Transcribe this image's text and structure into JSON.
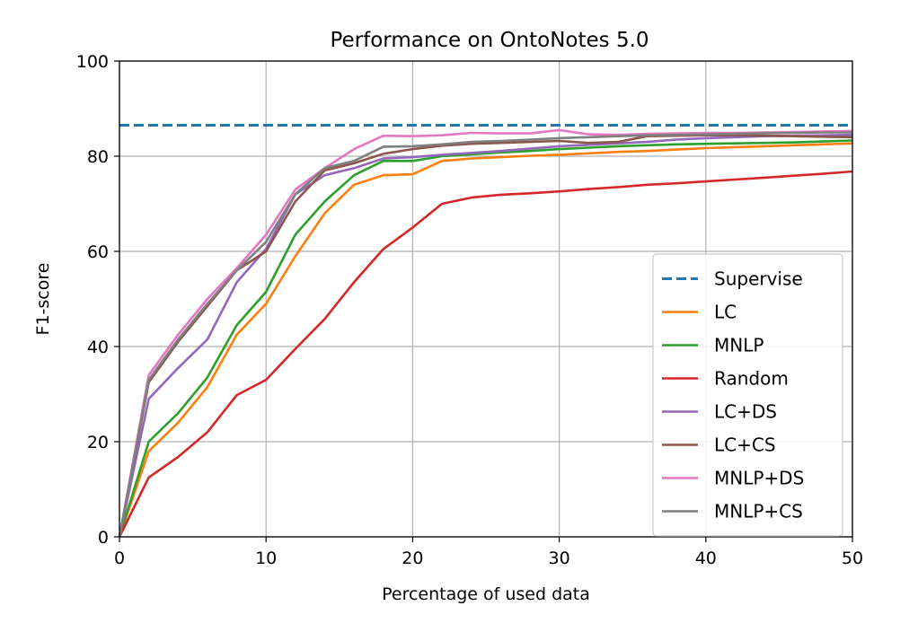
{
  "chart_data": {
    "type": "line",
    "title": "Performance on OntoNotes 5.0",
    "xlabel": "Percentage of used data",
    "ylabel": "F1-score",
    "xlim": [
      0,
      50
    ],
    "ylim": [
      0,
      100
    ],
    "xticks": [
      0,
      10,
      20,
      30,
      40,
      50
    ],
    "yticks": [
      0,
      20,
      40,
      60,
      80,
      100
    ],
    "grid": true,
    "legend_position": "lower right",
    "x": [
      0,
      2,
      4,
      6,
      8,
      10,
      12,
      14,
      16,
      18,
      20,
      22,
      24,
      26,
      28,
      30,
      32,
      34,
      36,
      38,
      40,
      42,
      44,
      46,
      48,
      50
    ],
    "series": [
      {
        "name": "Supervise",
        "color": "#1f77b4",
        "dashed": true,
        "constant": 86.5
      },
      {
        "name": "LC",
        "color": "#ff7f0e",
        "values": [
          0,
          18,
          24,
          31.5,
          42.5,
          49,
          59,
          68,
          74,
          76,
          76.2,
          79,
          79.5,
          79.8,
          80.1,
          80.3,
          80.6,
          80.9,
          81.1,
          81.4,
          81.7,
          81.9,
          82.1,
          82.3,
          82.5,
          82.7
        ]
      },
      {
        "name": "MNLP",
        "color": "#2ca02c",
        "values": [
          0,
          20,
          26,
          33.5,
          44.5,
          51.5,
          63.5,
          70.5,
          76,
          79,
          79,
          80,
          80.4,
          80.8,
          81.1,
          81.5,
          81.8,
          82.1,
          82.3,
          82.5,
          82.6,
          82.7,
          82.8,
          82.9,
          83.1,
          83.3
        ]
      },
      {
        "name": "Random",
        "color": "#d62728",
        "values": [
          0,
          12.5,
          16.8,
          22,
          29.8,
          33,
          39.5,
          45.8,
          53.5,
          60.5,
          65,
          70,
          71.3,
          71.9,
          72.2,
          72.6,
          73.1,
          73.5,
          74,
          74.3,
          74.7,
          75.1,
          75.5,
          75.9,
          76.3,
          76.8
        ]
      },
      {
        "name": "LC+DS",
        "color": "#9467bd",
        "values": [
          0,
          29,
          35.5,
          41.5,
          53.5,
          60.5,
          72,
          76,
          77.5,
          79.5,
          79.8,
          80.3,
          80.7,
          81.1,
          81.6,
          82.1,
          82.4,
          82.7,
          83,
          83.5,
          83.8,
          84,
          84.2,
          84.3,
          84.4,
          84.5
        ]
      },
      {
        "name": "LC+CS",
        "color": "#8c564b",
        "values": [
          0,
          32.5,
          41,
          48.5,
          56,
          60,
          70.5,
          77,
          78.5,
          80.5,
          81.5,
          82.2,
          82.6,
          82.8,
          83,
          83.2,
          82.8,
          83,
          84.2,
          84.3,
          84.4,
          84.4,
          84.3,
          84.2,
          84.1,
          84
        ]
      },
      {
        "name": "MNLP+DS",
        "color": "#e377c2",
        "values": [
          0,
          34,
          42.5,
          50,
          56.5,
          63.5,
          73,
          77.5,
          81.5,
          84.3,
          84.2,
          84.4,
          84.9,
          84.8,
          84.8,
          85.5,
          84.6,
          84.5,
          84.7,
          84.8,
          84.9,
          84.9,
          85,
          85.1,
          85.2,
          85.3
        ]
      },
      {
        "name": "MNLP+CS",
        "color": "#7f7f7f",
        "values": [
          0,
          33,
          41.5,
          49,
          56,
          62,
          72,
          77.5,
          79,
          82,
          82.1,
          82.5,
          83,
          83.2,
          83.5,
          83.8,
          84,
          84.2,
          84.4,
          84.5,
          84.6,
          84.7,
          84.8,
          84.9,
          85,
          85
        ]
      }
    ]
  }
}
